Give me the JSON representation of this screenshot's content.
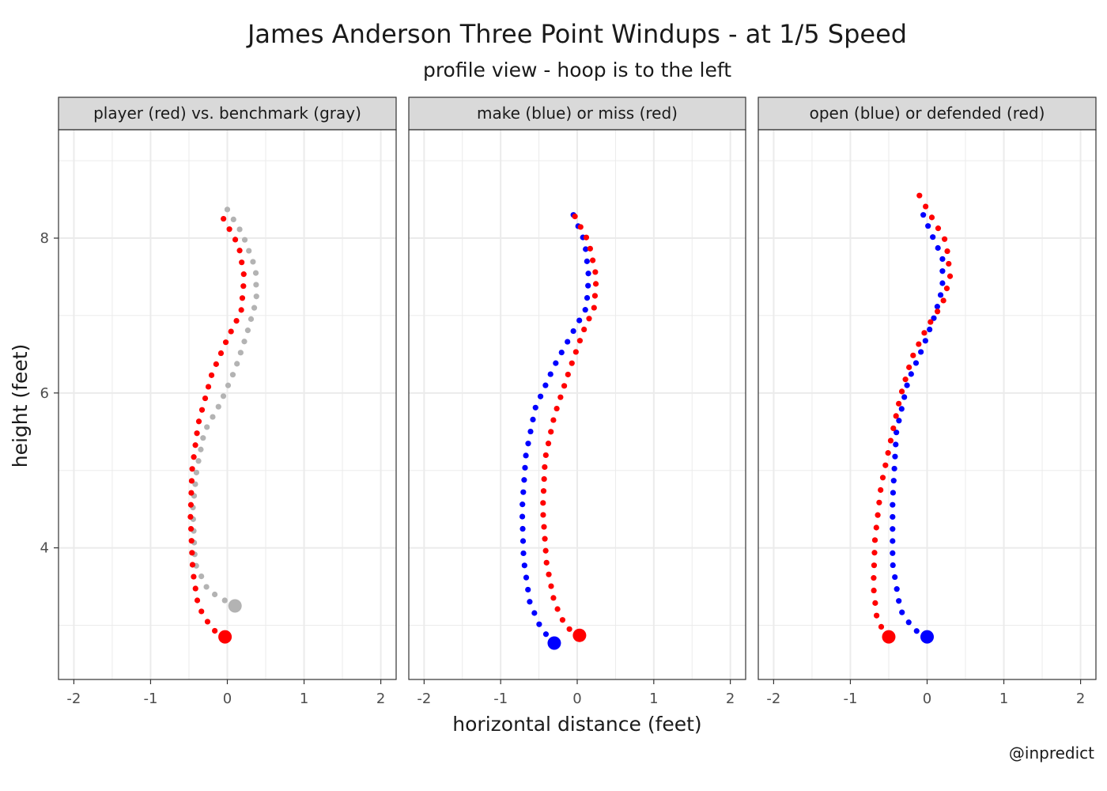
{
  "title": "James Anderson Three Point Windups - at 1/5 Speed",
  "subtitle": "profile view - hoop is to the left",
  "credit": "@inpredict",
  "colors": {
    "red": "#ff0000",
    "blue": "#0000ff",
    "gray": "#b3b3b3",
    "strip_bg": "#d9d9d9",
    "grid": "#ebebeb"
  },
  "chart_data": {
    "type": "scatter",
    "xlabel": "horizontal distance (feet)",
    "ylabel": "height (feet)",
    "xlim": [
      -2.2,
      2.2
    ],
    "ylim": [
      2.3,
      9.4
    ],
    "x_ticks": [
      -2,
      -1,
      0,
      1,
      2
    ],
    "x_tick_labels": [
      "-2",
      "-1",
      "0",
      "1",
      "2"
    ],
    "y_ticks": [
      4,
      6,
      8
    ],
    "y_tick_labels": [
      "4",
      "6",
      "8"
    ],
    "grid": true,
    "panels": [
      {
        "strip": "player (red) vs. benchmark (gray)",
        "series": [
          {
            "color": "gray",
            "start": [
              0.1,
              3.25
            ],
            "path": [
              [
                0.1,
                3.25
              ],
              [
                -0.05,
                3.33
              ],
              [
                -0.25,
                3.45
              ],
              [
                -0.42,
                3.8
              ],
              [
                -0.45,
                4.5
              ],
              [
                -0.4,
                5.0
              ],
              [
                -0.3,
                5.5
              ],
              [
                -0.1,
                5.85
              ],
              [
                0.1,
                6.3
              ],
              [
                0.25,
                6.75
              ],
              [
                0.38,
                7.2
              ],
              [
                0.37,
                7.6
              ],
              [
                0.2,
                8.05
              ],
              [
                0.0,
                8.37
              ]
            ]
          },
          {
            "color": "red",
            "start": [
              -0.03,
              2.85
            ],
            "path": [
              [
                -0.03,
                2.85
              ],
              [
                -0.2,
                2.95
              ],
              [
                -0.38,
                3.25
              ],
              [
                -0.45,
                3.7
              ],
              [
                -0.48,
                4.4
              ],
              [
                -0.46,
                5.0
              ],
              [
                -0.38,
                5.6
              ],
              [
                -0.2,
                6.25
              ],
              [
                0.0,
                6.7
              ],
              [
                0.18,
                7.05
              ],
              [
                0.22,
                7.5
              ],
              [
                0.15,
                7.9
              ],
              [
                -0.05,
                8.25
              ]
            ]
          }
        ]
      },
      {
        "strip": "make (blue) or miss (red)",
        "series": [
          {
            "color": "blue",
            "start": [
              -0.3,
              2.77
            ],
            "path": [
              [
                -0.3,
                2.77
              ],
              [
                -0.47,
                2.95
              ],
              [
                -0.62,
                3.3
              ],
              [
                -0.7,
                3.85
              ],
              [
                -0.72,
                4.5
              ],
              [
                -0.67,
                5.2
              ],
              [
                -0.55,
                5.8
              ],
              [
                -0.3,
                6.35
              ],
              [
                -0.05,
                6.8
              ],
              [
                0.12,
                7.1
              ],
              [
                0.15,
                7.5
              ],
              [
                0.1,
                7.95
              ],
              [
                -0.05,
                8.3
              ]
            ]
          },
          {
            "color": "red",
            "start": [
              0.03,
              2.87
            ],
            "path": [
              [
                0.03,
                2.87
              ],
              [
                -0.15,
                2.98
              ],
              [
                -0.3,
                3.3
              ],
              [
                -0.4,
                3.8
              ],
              [
                -0.45,
                4.5
              ],
              [
                -0.42,
                5.15
              ],
              [
                -0.3,
                5.7
              ],
              [
                -0.1,
                6.3
              ],
              [
                0.08,
                6.8
              ],
              [
                0.22,
                7.1
              ],
              [
                0.25,
                7.5
              ],
              [
                0.15,
                7.95
              ],
              [
                -0.03,
                8.28
              ]
            ]
          }
        ]
      },
      {
        "strip": "open (blue) or defended (red)",
        "series": [
          {
            "color": "blue",
            "start": [
              0.0,
              2.85
            ],
            "path": [
              [
                0.0,
                2.85
              ],
              [
                -0.18,
                2.95
              ],
              [
                -0.35,
                3.2
              ],
              [
                -0.45,
                3.8
              ],
              [
                -0.45,
                4.6
              ],
              [
                -0.4,
                5.5
              ],
              [
                -0.25,
                6.15
              ],
              [
                -0.05,
                6.6
              ],
              [
                0.1,
                7.0
              ],
              [
                0.2,
                7.35
              ],
              [
                0.2,
                7.75
              ],
              [
                0.08,
                8.0
              ],
              [
                -0.05,
                8.3
              ]
            ]
          },
          {
            "color": "red",
            "start": [
              -0.5,
              2.85
            ],
            "path": [
              [
                -0.5,
                2.85
              ],
              [
                -0.65,
                3.05
              ],
              [
                -0.7,
                3.5
              ],
              [
                -0.68,
                4.1
              ],
              [
                -0.6,
                4.8
              ],
              [
                -0.45,
                5.5
              ],
              [
                -0.35,
                5.95
              ],
              [
                -0.2,
                6.45
              ],
              [
                0.0,
                6.85
              ],
              [
                0.2,
                7.15
              ],
              [
                0.3,
                7.5
              ],
              [
                0.25,
                7.95
              ],
              [
                0.1,
                8.2
              ],
              [
                -0.1,
                8.55
              ]
            ]
          }
        ]
      }
    ]
  }
}
